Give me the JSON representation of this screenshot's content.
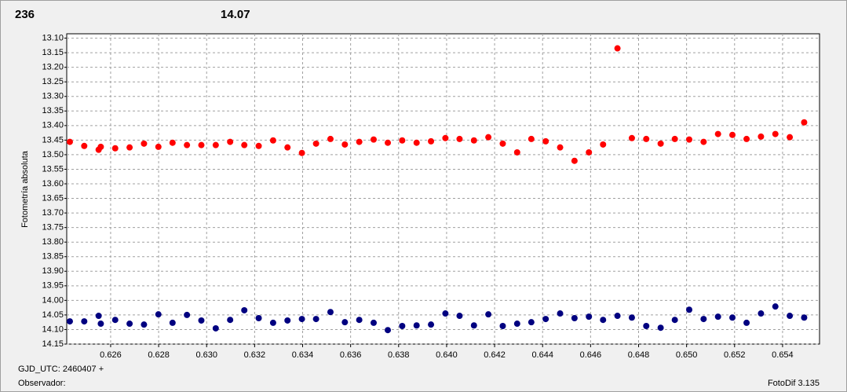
{
  "chart_data": {
    "type": "scatter",
    "header_left": "236",
    "header_left_color": "#ff0000",
    "header_right": "14.07",
    "header_right_color": "#0a1a8a",
    "y_label": "Fotometría absoluta",
    "footer_left_1": "GJD_UTC: 2460407 +",
    "footer_left_2": "Observador:",
    "footer_right": "FotoDif 3.135",
    "x": [
      0.6243,
      0.6249,
      0.6255,
      0.62559,
      0.62619,
      0.62679,
      0.62739,
      0.62799,
      0.62858,
      0.62918,
      0.62978,
      0.63038,
      0.63098,
      0.63157,
      0.63217,
      0.63277,
      0.63337,
      0.63397,
      0.63456,
      0.63516,
      0.63576,
      0.63636,
      0.63696,
      0.63755,
      0.63815,
      0.63875,
      0.63935,
      0.63995,
      0.64054,
      0.64114,
      0.64174,
      0.64234,
      0.64294,
      0.64353,
      0.64413,
      0.64473,
      0.64533,
      0.64593,
      0.64652,
      0.64712,
      0.64772,
      0.64832,
      0.64892,
      0.64951,
      0.65011,
      0.65071,
      0.65131,
      0.65191,
      0.6525,
      0.6531,
      0.6537,
      0.6543,
      0.6549
    ],
    "series": [
      {
        "color": "#ff0000",
        "values": [
          13.456,
          13.47,
          13.483,
          13.473,
          13.478,
          13.475,
          13.462,
          13.473,
          13.459,
          13.467,
          13.467,
          13.467,
          13.456,
          13.467,
          13.47,
          13.451,
          13.475,
          13.494,
          13.462,
          13.446,
          13.465,
          13.456,
          13.448,
          13.459,
          13.451,
          13.459,
          13.454,
          13.443,
          13.446,
          13.451,
          13.44,
          13.462,
          13.492,
          13.446,
          13.454,
          13.475,
          13.521,
          13.492,
          13.465,
          13.135,
          13.443,
          13.446,
          13.462,
          13.446,
          13.448,
          13.456,
          13.429,
          13.432,
          13.446,
          13.438,
          13.429,
          13.44,
          13.389
        ]
      },
      {
        "color": "#000080",
        "values": [
          14.072,
          14.072,
          14.053,
          14.08,
          14.067,
          14.08,
          14.083,
          14.048,
          14.077,
          14.05,
          14.069,
          14.096,
          14.067,
          14.034,
          14.061,
          14.077,
          14.069,
          14.064,
          14.064,
          14.04,
          14.075,
          14.067,
          14.077,
          14.102,
          14.088,
          14.086,
          14.083,
          14.045,
          14.053,
          14.086,
          14.048,
          14.088,
          14.08,
          14.075,
          14.064,
          14.045,
          14.061,
          14.056,
          14.067,
          14.053,
          14.059,
          14.088,
          14.094,
          14.067,
          14.032,
          14.064,
          14.056,
          14.059,
          14.077,
          14.045,
          14.021,
          14.053,
          14.059
        ]
      }
    ],
    "xlim": [
      0.62417,
      0.65554
    ],
    "xticks": [
      0.626,
      0.628,
      {
        "value": 0.63,
        "label": "0.630"
      },
      0.632,
      0.634,
      0.636,
      0.638,
      {
        "value": 0.64,
        "label": "0.640"
      },
      0.642,
      0.644,
      0.646,
      0.648,
      {
        "value": 0.65,
        "label": "0.650"
      },
      0.652,
      0.654
    ],
    "ylim": [
      13.085,
      14.15
    ],
    "y_inverted": true,
    "yticks": [
      {
        "value": 13.1,
        "label": "13.10"
      },
      13.15,
      {
        "value": 13.2,
        "label": "13.20"
      },
      13.25,
      {
        "value": 13.3,
        "label": "13.30"
      },
      13.35,
      {
        "value": 13.4,
        "label": "13.40"
      },
      13.45,
      {
        "value": 13.5,
        "label": "13.50"
      },
      13.55,
      {
        "value": 13.6,
        "label": "13.60"
      },
      13.65,
      {
        "value": 13.7,
        "label": "13.70"
      },
      13.75,
      {
        "value": 13.8,
        "label": "13.80"
      },
      13.85,
      {
        "value": 13.9,
        "label": "13.90"
      },
      13.95,
      {
        "value": 14,
        "label": "14.00"
      },
      14.05,
      {
        "value": 14.1,
        "label": "14.10"
      },
      14.15
    ],
    "grid": true
  }
}
